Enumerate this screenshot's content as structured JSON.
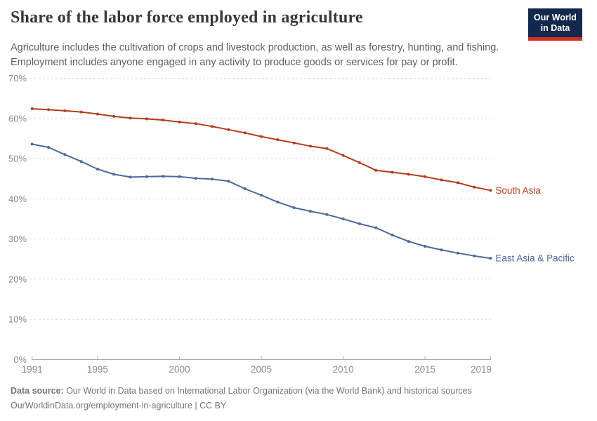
{
  "header": {
    "title": "Share of the labor force employed in agriculture",
    "subtitle": "Agriculture includes the cultivation of crops and livestock production, as well as forestry, hunting, and fishing.\nEmployment includes anyone engaged in any activity to produce goods or services for pay or profit.",
    "logo": {
      "line1": "Our World",
      "line2": "in Data",
      "bg_color": "#12294d",
      "accent_color": "#d0311f"
    }
  },
  "chart_data": {
    "type": "line",
    "title": "Share of the labor force employed in agriculture",
    "x": [
      1991,
      1992,
      1993,
      1994,
      1995,
      1996,
      1997,
      1998,
      1999,
      2000,
      2001,
      2002,
      2003,
      2004,
      2005,
      2006,
      2007,
      2008,
      2009,
      2010,
      2011,
      2012,
      2013,
      2014,
      2015,
      2016,
      2017,
      2018,
      2019
    ],
    "series": [
      {
        "name": "South Asia",
        "color": "#B33D1C",
        "values": [
          62.4,
          62.2,
          61.9,
          61.6,
          61.1,
          60.5,
          60.1,
          59.9,
          59.6,
          59.1,
          58.7,
          58.0,
          57.2,
          56.4,
          55.5,
          54.7,
          53.9,
          53.1,
          52.5,
          50.8,
          49.0,
          47.1,
          46.6,
          46.1,
          45.5,
          44.7,
          44.0,
          42.9,
          42.1
        ]
      },
      {
        "name": "East Asia & Pacific",
        "color": "#4C6A9C",
        "values": [
          53.6,
          52.8,
          51.0,
          49.3,
          47.4,
          46.1,
          45.4,
          45.5,
          45.6,
          45.5,
          45.1,
          44.9,
          44.4,
          42.5,
          40.9,
          39.2,
          37.8,
          36.9,
          36.1,
          35.0,
          33.8,
          32.8,
          31.0,
          29.4,
          28.2,
          27.3,
          26.5,
          25.8,
          25.2
        ]
      }
    ],
    "ylim": [
      0,
      70
    ],
    "ytick_step": 10,
    "ytick_suffix": "%",
    "xticks": [
      1991,
      1995,
      2000,
      2005,
      2010,
      2015,
      2019
    ],
    "grid": "horizontal-dashed",
    "legend_position": "right-of-line-end",
    "colors": {
      "grid": "#dddddd",
      "axis": "#a9a9a9",
      "tick_label": "#8a8a8a"
    }
  },
  "footer": {
    "source_label": "Data source:",
    "source_text": " Our World in Data based on International Labor Organization (via the World Bank) and historical sources",
    "link_line": "OurWorldinData.org/employment-in-agriculture | CC BY"
  }
}
